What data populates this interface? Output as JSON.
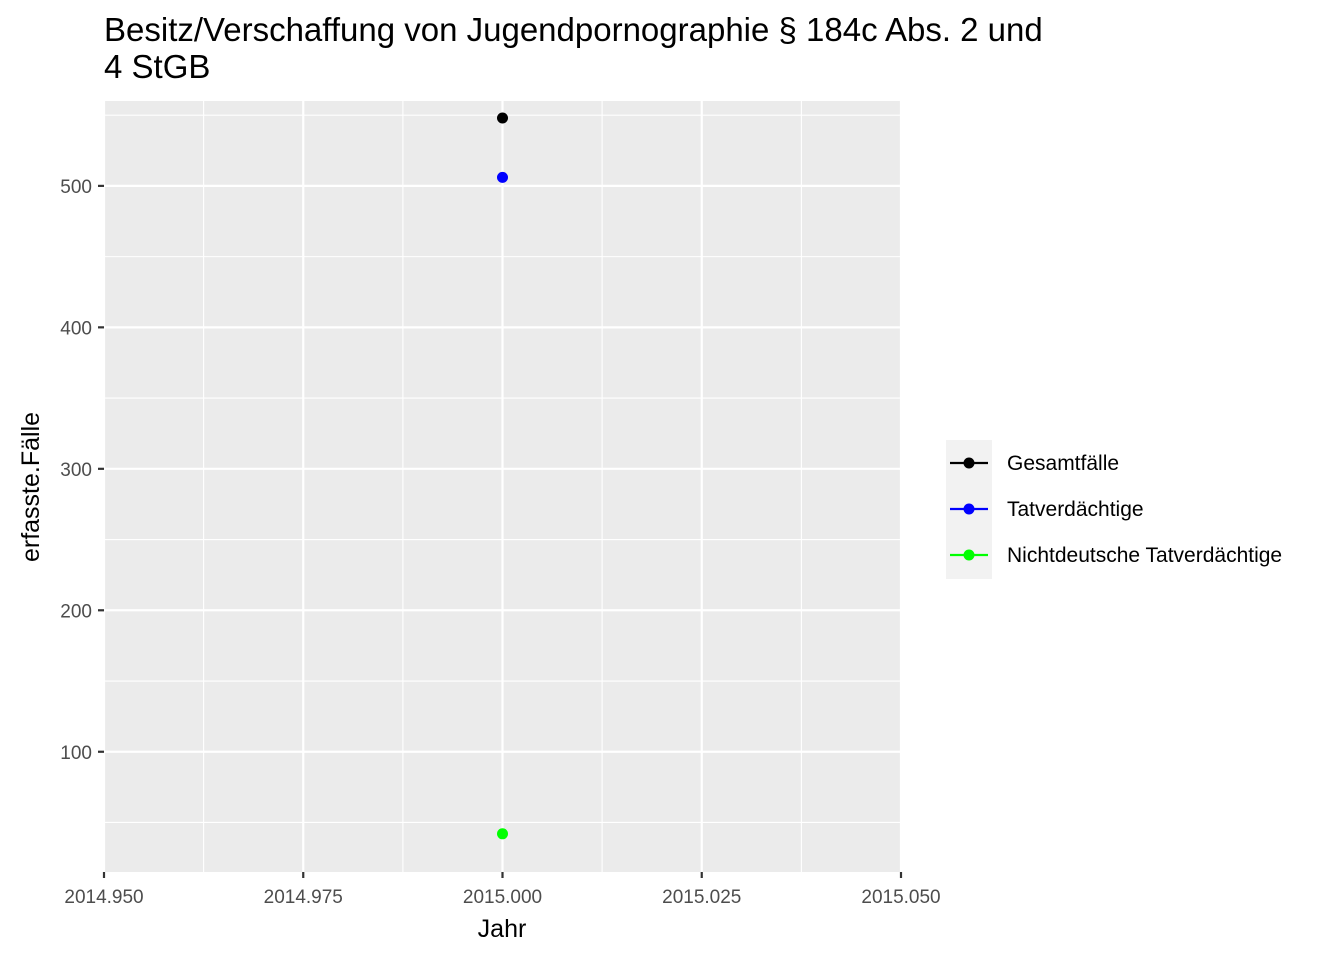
{
  "chart_data": {
    "type": "scatter",
    "title": "Besitz/Verschaffung von Jugendpornographie § 184c Abs. 2 und 4 StGB",
    "title_lines": [
      "Besitz/Verschaffung von Jugendpornographie § 184c Abs. 2 und",
      "4 StGB"
    ],
    "xlabel": "Jahr",
    "ylabel": "erfasste.Fälle",
    "xlim": [
      2014.95,
      2015.05
    ],
    "ylim": [
      15,
      560
    ],
    "x_ticks": [
      2014.95,
      2014.975,
      2015.0,
      2015.025,
      2015.05
    ],
    "x_tick_labels": [
      "2014.950",
      "2014.975",
      "2015.000",
      "2015.025",
      "2015.050"
    ],
    "y_ticks": [
      100,
      200,
      300,
      400,
      500
    ],
    "y_tick_labels": [
      "100",
      "200",
      "300",
      "400",
      "500"
    ],
    "grid": true,
    "legend_position": "right",
    "panel_background": "#ebebeb",
    "series": [
      {
        "name": "Gesamtfälle",
        "color": "#000000",
        "x": [
          2015.0
        ],
        "y": [
          548
        ]
      },
      {
        "name": "Tatverdächtige",
        "color": "#0000ff",
        "x": [
          2015.0
        ],
        "y": [
          506
        ]
      },
      {
        "name": "Nichtdeutsche Tatverdächtige",
        "color": "#00ff00",
        "x": [
          2015.0
        ],
        "y": [
          42
        ]
      }
    ]
  }
}
